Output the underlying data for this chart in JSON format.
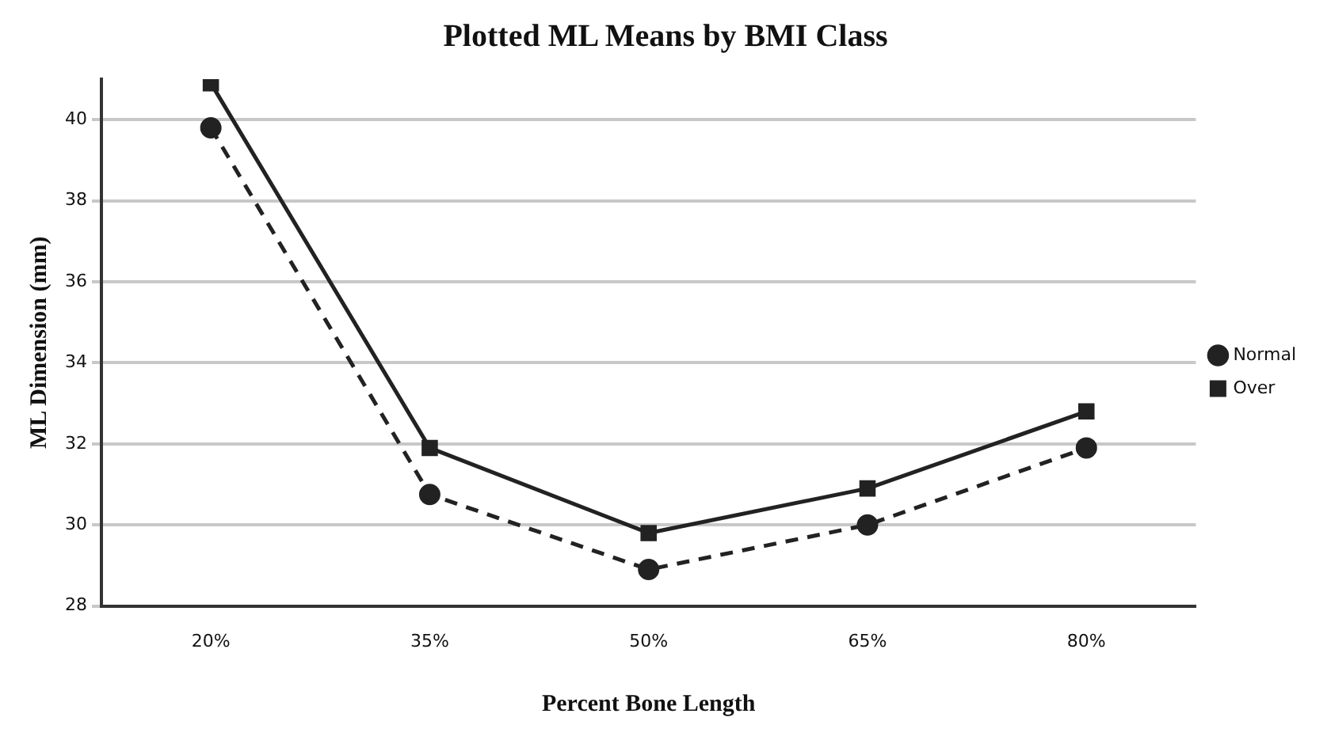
{
  "chart_data": {
    "type": "line",
    "title": "Plotted ML Means by BMI Class",
    "xlabel": "Percent Bone Length",
    "ylabel": "ML Dimension (mm)",
    "categories": [
      "20%",
      "35%",
      "50%",
      "65%",
      "80%"
    ],
    "series": [
      {
        "name": "Normal",
        "color": "#222222",
        "values": [
          39.8,
          30.75,
          28.9,
          30.0,
          31.9
        ],
        "marker": "circle",
        "line_style": "dashed"
      },
      {
        "name": "Over",
        "color": "#222222",
        "values": [
          40.9,
          31.9,
          29.8,
          30.9,
          32.8
        ],
        "marker": "square",
        "line_style": "solid"
      }
    ],
    "ylim": [
      28,
      41
    ],
    "yticks": [
      28,
      30,
      32,
      34,
      36,
      38,
      40
    ],
    "grid": "y",
    "legend": "right"
  }
}
